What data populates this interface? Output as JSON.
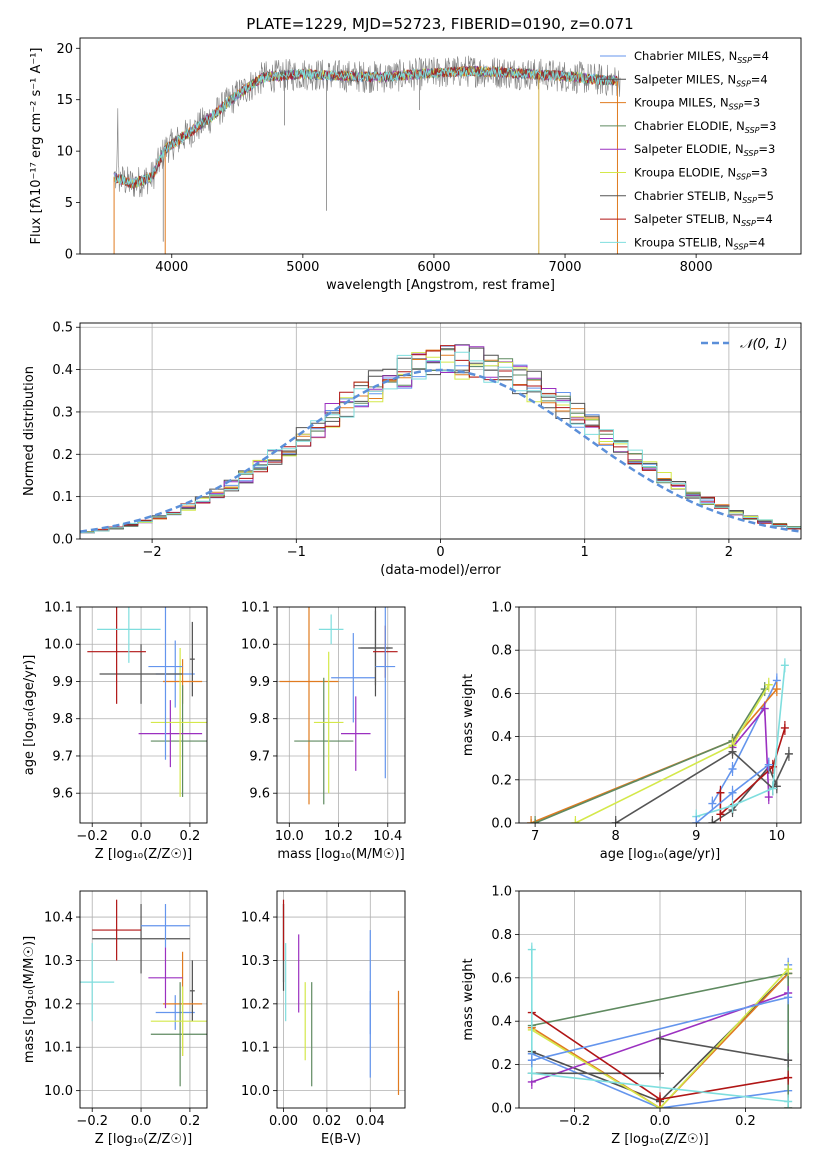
{
  "figure": {
    "title": "PLATE=1229, MJD=52723, FIBERID=0190, z=0.071",
    "models": [
      {
        "name": "Chabrier MILES",
        "nssp": "4",
        "color": "#6495ed"
      },
      {
        "name": "Salpeter MILES",
        "nssp": "4",
        "color": "#4f4f4f"
      },
      {
        "name": "Kroupa MILES",
        "nssp": "3",
        "color": "#e07b20"
      },
      {
        "name": "Chabrier ELODIE",
        "nssp": "3",
        "color": "#5f8a60"
      },
      {
        "name": "Salpeter ELODIE",
        "nssp": "3",
        "color": "#9b30c0"
      },
      {
        "name": "Kroupa ELODIE",
        "nssp": "3",
        "color": "#d4e84a"
      },
      {
        "name": "Chabrier STELIB",
        "nssp": "5",
        "color": "#555555"
      },
      {
        "name": "Salpeter STELIB",
        "nssp": "4",
        "color": "#b01515"
      },
      {
        "name": "Kroupa STELIB",
        "nssp": "4",
        "color": "#7fdede"
      }
    ],
    "nssp_label_sub": "SSP",
    "nssp_label_prefix": "N"
  },
  "chart_data": [
    {
      "id": "spectrum",
      "type": "line",
      "xlabel": "wavelength [Angstrom, rest frame]",
      "ylabel": "Flux [fλ10⁻¹⁷ erg cm⁻² s⁻¹ A⁻¹]",
      "xlim": [
        3300,
        8800
      ],
      "ylim": [
        0,
        21
      ],
      "xticks": [
        4000,
        5000,
        6000,
        7000,
        8000
      ],
      "yticks": [
        0,
        5,
        10,
        15,
        20
      ],
      "continuum": [
        [
          3560,
          7.5
        ],
        [
          3700,
          6.8
        ],
        [
          3850,
          7.5
        ],
        [
          3950,
          10.2
        ],
        [
          4100,
          11.5
        ],
        [
          4300,
          13.3
        ],
        [
          4500,
          15.5
        ],
        [
          4700,
          17.2
        ],
        [
          5000,
          17.5
        ],
        [
          5300,
          17.3
        ],
        [
          5600,
          17.2
        ],
        [
          6000,
          17.6
        ],
        [
          6300,
          17.8
        ],
        [
          6600,
          17.6
        ],
        [
          7000,
          17.3
        ],
        [
          7300,
          16.9
        ],
        [
          7400,
          16.8
        ]
      ],
      "legend": "top-right"
    },
    {
      "id": "residuals",
      "type": "line",
      "xlabel": "(data-model)/error",
      "ylabel": "Normed distribution",
      "xlim": [
        -2.5,
        2.5
      ],
      "ylim": [
        0,
        0.51
      ],
      "xticks": [
        -2,
        -1,
        0,
        1,
        2
      ],
      "yticks": [
        0.0,
        0.1,
        0.2,
        0.3,
        0.4,
        0.5
      ],
      "gaussian_label": "𝒩(0, 1)",
      "gaussian_color": "#5b8fd9",
      "grid": true,
      "legend": "top-right"
    },
    {
      "id": "age-vs-Z",
      "type": "scatter",
      "xlabel": "Z [log₁₀(Z/Z☉)]",
      "ylabel": "age  [log₁₀(age/yr)]",
      "xlim": [
        -0.25,
        0.27
      ],
      "ylim": [
        9.52,
        10.1
      ],
      "xticks": [
        -0.2,
        0.0,
        0.2
      ],
      "yticks": [
        9.6,
        9.7,
        9.8,
        9.9,
        10.0,
        10.1
      ],
      "points": [
        {
          "x": 0.14,
          "y": 9.92,
          "xerr": 0.08,
          "yerr": 0.09,
          "c": 0
        },
        {
          "x": 0.21,
          "y": 9.96,
          "xerr": 0.01,
          "yerr": 0.1,
          "c": 1
        },
        {
          "x": 0.17,
          "y": 9.9,
          "xerr": 0.08,
          "yerr": 0.06,
          "c": 2
        },
        {
          "x": 0.17,
          "y": 9.74,
          "xerr": 0.13,
          "yerr": 0.15,
          "c": 3
        },
        {
          "x": 0.12,
          "y": 9.76,
          "xerr": 0.13,
          "yerr": 0.09,
          "c": 4
        },
        {
          "x": 0.16,
          "y": 9.79,
          "xerr": 0.12,
          "yerr": 0.2,
          "c": 5
        },
        {
          "x": 0.0,
          "y": 9.92,
          "xerr": 0.17,
          "yerr": 0.08,
          "c": 6
        },
        {
          "x": -0.1,
          "y": 9.98,
          "xerr": 0.12,
          "yerr": 0.14,
          "c": 7
        },
        {
          "x": -0.05,
          "y": 10.04,
          "xerr": 0.13,
          "yerr": 0.09,
          "c": 8
        },
        {
          "x": 0.1,
          "y": 9.94,
          "xerr": 0.07,
          "yerr": 0.25,
          "c": 0
        }
      ],
      "grid": true
    },
    {
      "id": "age-vs-mass",
      "type": "scatter",
      "xlabel": "mass [log₁₀(M/M☉)]",
      "ylabel": "",
      "xlim": [
        9.95,
        10.47
      ],
      "ylim": [
        9.52,
        10.1
      ],
      "xticks": [
        10.0,
        10.2,
        10.4
      ],
      "yticks": [
        9.6,
        9.7,
        9.8,
        9.9,
        10.0,
        10.1
      ],
      "points": [
        {
          "x": 10.26,
          "y": 9.91,
          "xerr": 0.09,
          "yerr": 0.12,
          "c": 0
        },
        {
          "x": 10.35,
          "y": 9.99,
          "xerr": 0.07,
          "yerr": 0.13,
          "c": 1
        },
        {
          "x": 10.08,
          "y": 9.9,
          "xerr": 0.12,
          "yerr": 0.33,
          "c": 2
        },
        {
          "x": 10.14,
          "y": 9.74,
          "xerr": 0.12,
          "yerr": 0.17,
          "c": 3
        },
        {
          "x": 10.27,
          "y": 9.76,
          "xerr": 0.06,
          "yerr": 0.1,
          "c": 4
        },
        {
          "x": 10.16,
          "y": 9.79,
          "xerr": 0.06,
          "yerr": 0.19,
          "c": 5
        },
        {
          "x": 10.35,
          "y": 9.99,
          "xerr": 0.06,
          "yerr": 0.1,
          "c": 6
        },
        {
          "x": 10.39,
          "y": 9.98,
          "xerr": 0.05,
          "yerr": 0.07,
          "c": 7
        },
        {
          "x": 10.17,
          "y": 10.04,
          "xerr": 0.05,
          "yerr": 0.04,
          "c": 8
        },
        {
          "x": 10.39,
          "y": 9.94,
          "xerr": 0.04,
          "yerr": 0.3,
          "c": 0
        }
      ],
      "grid": true
    },
    {
      "id": "weight-vs-age",
      "type": "line",
      "xlabel": "age  [log₁₀(age/yr)]",
      "ylabel": "mass weight",
      "xlim": [
        6.8,
        10.3
      ],
      "ylim": [
        0.0,
        1.0
      ],
      "xticks": [
        7,
        8,
        9,
        10
      ],
      "yticks": [
        0.0,
        0.2,
        0.4,
        0.6,
        0.8,
        1.0
      ],
      "series": [
        {
          "c": 0,
          "pts": [
            [
              9.2,
              0.09
            ],
            [
              9.45,
              0.25
            ],
            [
              10.0,
              0.66
            ]
          ]
        },
        {
          "c": 1,
          "pts": [
            [
              9.2,
              0.0
            ],
            [
              9.45,
              0.06
            ],
            [
              9.9,
              0.26
            ],
            [
              10.0,
              0.17
            ]
          ]
        },
        {
          "c": 2,
          "pts": [
            [
              6.95,
              0.0
            ],
            [
              9.45,
              0.38
            ],
            [
              10.0,
              0.62
            ]
          ]
        },
        {
          "c": 3,
          "pts": [
            [
              7.0,
              0.0
            ],
            [
              9.45,
              0.38
            ],
            [
              9.85,
              0.62
            ]
          ]
        },
        {
          "c": 4,
          "pts": [
            [
              9.45,
              0.35
            ],
            [
              9.85,
              0.53
            ],
            [
              9.9,
              0.12
            ]
          ]
        },
        {
          "c": 5,
          "pts": [
            [
              7.5,
              0.0
            ],
            [
              9.45,
              0.36
            ],
            [
              9.9,
              0.64
            ]
          ]
        },
        {
          "c": 6,
          "pts": [
            [
              8.0,
              0.0
            ],
            [
              9.45,
              0.33
            ],
            [
              9.95,
              0.16
            ],
            [
              10.15,
              0.32
            ]
          ]
        },
        {
          "c": 7,
          "pts": [
            [
              9.3,
              0.14
            ],
            [
              9.3,
              0.04
            ],
            [
              9.95,
              0.26
            ],
            [
              10.1,
              0.44
            ]
          ]
        },
        {
          "c": 8,
          "pts": [
            [
              9.0,
              0.03
            ],
            [
              9.45,
              0.08
            ],
            [
              9.95,
              0.16
            ],
            [
              10.1,
              0.73
            ]
          ]
        },
        {
          "c": 0,
          "pts": [
            [
              9.0,
              0.0
            ],
            [
              9.45,
              0.14
            ],
            [
              9.9,
              0.27
            ]
          ]
        }
      ],
      "grid": true
    },
    {
      "id": "mass-vs-Z",
      "type": "scatter",
      "xlabel": "Z [log₁₀(Z/Z☉)]",
      "ylabel": "mass [log₁₀(M/M☉)]",
      "xlim": [
        -0.25,
        0.27
      ],
      "ylim": [
        9.96,
        10.46
      ],
      "xticks": [
        -0.2,
        0.0,
        0.2
      ],
      "yticks": [
        10.0,
        10.1,
        10.2,
        10.3,
        10.4
      ],
      "points": [
        {
          "x": 0.14,
          "y": 10.18,
          "xerr": 0.08,
          "yerr": 0.04,
          "c": 0
        },
        {
          "x": 0.21,
          "y": 10.23,
          "xerr": 0.01,
          "yerr": 0.07,
          "c": 1
        },
        {
          "x": 0.17,
          "y": 10.2,
          "xerr": 0.08,
          "yerr": 0.12,
          "c": 2
        },
        {
          "x": 0.16,
          "y": 10.13,
          "xerr": 0.12,
          "yerr": 0.12,
          "c": 3
        },
        {
          "x": 0.1,
          "y": 10.26,
          "xerr": 0.07,
          "yerr": 0.07,
          "c": 4
        },
        {
          "x": 0.17,
          "y": 10.16,
          "xerr": 0.13,
          "yerr": 0.08,
          "c": 5
        },
        {
          "x": 0.0,
          "y": 10.35,
          "xerr": 0.2,
          "yerr": 0.08,
          "c": 6
        },
        {
          "x": -0.1,
          "y": 10.37,
          "xerr": 0.1,
          "yerr": 0.07,
          "c": 7
        },
        {
          "x": -0.2,
          "y": 10.25,
          "xerr": 0.09,
          "yerr": 0.09,
          "c": 8
        },
        {
          "x": 0.1,
          "y": 10.38,
          "xerr": 0.1,
          "yerr": 0.05,
          "c": 0
        }
      ],
      "grid": true
    },
    {
      "id": "mass-vs-EBV",
      "type": "scatter",
      "xlabel": "E(B-V)",
      "ylabel": "",
      "xlim": [
        -0.003,
        0.056
      ],
      "ylim": [
        9.96,
        10.46
      ],
      "xticks": [
        0.0,
        0.02,
        0.04
      ],
      "yticks": [
        10.0,
        10.1,
        10.2,
        10.3,
        10.4
      ],
      "points": [
        {
          "x": 0.04,
          "y": 10.13,
          "xerr": 0,
          "yerr": 0.1,
          "c": 0
        },
        {
          "x": 0.0,
          "y": 10.33,
          "xerr": 0,
          "yerr": 0.1,
          "c": 1
        },
        {
          "x": 0.053,
          "y": 10.11,
          "xerr": 0,
          "yerr": 0.12,
          "c": 2
        },
        {
          "x": 0.013,
          "y": 10.13,
          "xerr": 0,
          "yerr": 0.12,
          "c": 3
        },
        {
          "x": 0.007,
          "y": 10.27,
          "xerr": 0,
          "yerr": 0.09,
          "c": 4
        },
        {
          "x": 0.01,
          "y": 10.16,
          "xerr": 0,
          "yerr": 0.09,
          "c": 5
        },
        {
          "x": 0.0,
          "y": 10.34,
          "xerr": 0,
          "yerr": 0.09,
          "c": 6
        },
        {
          "x": 0.0,
          "y": 10.37,
          "xerr": 0,
          "yerr": 0.07,
          "c": 7
        },
        {
          "x": 0.001,
          "y": 10.25,
          "xerr": 0,
          "yerr": 0.09,
          "c": 8
        },
        {
          "x": 0.04,
          "y": 10.25,
          "xerr": 0,
          "yerr": 0.12,
          "c": 0
        }
      ],
      "grid": true
    },
    {
      "id": "weight-vs-Z",
      "type": "line",
      "xlabel": "Z [log₁₀(Z/Z☉)]",
      "ylabel": "mass weight",
      "xlim": [
        -0.33,
        0.33
      ],
      "ylim": [
        0.0,
        1.0
      ],
      "xticks": [
        -0.2,
        0.0,
        0.2
      ],
      "yticks": [
        0.0,
        0.2,
        0.4,
        0.6,
        0.8,
        1.0
      ],
      "series": [
        {
          "c": 0,
          "pts": [
            [
              -0.3,
              0.25
            ],
            [
              0.0,
              0.0
            ],
            [
              0.3,
              0.08
            ],
            [
              0.3,
              0.66
            ]
          ]
        },
        {
          "c": 1,
          "pts": [
            [
              -0.3,
              0.26
            ],
            [
              0.0,
              0.03
            ],
            [
              0.3,
              0.62
            ]
          ]
        },
        {
          "c": 2,
          "pts": [
            [
              -0.3,
              0.37
            ],
            [
              0.0,
              0.0
            ],
            [
              0.3,
              0.62
            ]
          ]
        },
        {
          "c": 3,
          "pts": [
            [
              -0.3,
              0.38
            ],
            [
              0.3,
              0.62
            ],
            [
              0.3,
              0.0
            ]
          ]
        },
        {
          "c": 4,
          "pts": [
            [
              -0.3,
              0.12
            ],
            [
              0.3,
              0.53
            ]
          ]
        },
        {
          "c": 5,
          "pts": [
            [
              -0.3,
              0.36
            ],
            [
              0.0,
              0.0
            ],
            [
              0.3,
              0.64
            ]
          ]
        },
        {
          "c": 6,
          "pts": [
            [
              -0.3,
              0.16
            ],
            [
              0.0,
              0.16
            ],
            [
              0.0,
              0.32
            ],
            [
              0.3,
              0.22
            ]
          ]
        },
        {
          "c": 7,
          "pts": [
            [
              -0.3,
              0.44
            ],
            [
              0.0,
              0.04
            ],
            [
              0.3,
              0.14
            ]
          ]
        },
        {
          "c": 8,
          "pts": [
            [
              -0.3,
              0.73
            ],
            [
              -0.3,
              0.16
            ],
            [
              0.3,
              0.03
            ]
          ]
        },
        {
          "c": 0,
          "pts": [
            [
              -0.3,
              0.22
            ],
            [
              0.3,
              0.51
            ]
          ]
        }
      ],
      "grid": true
    }
  ]
}
